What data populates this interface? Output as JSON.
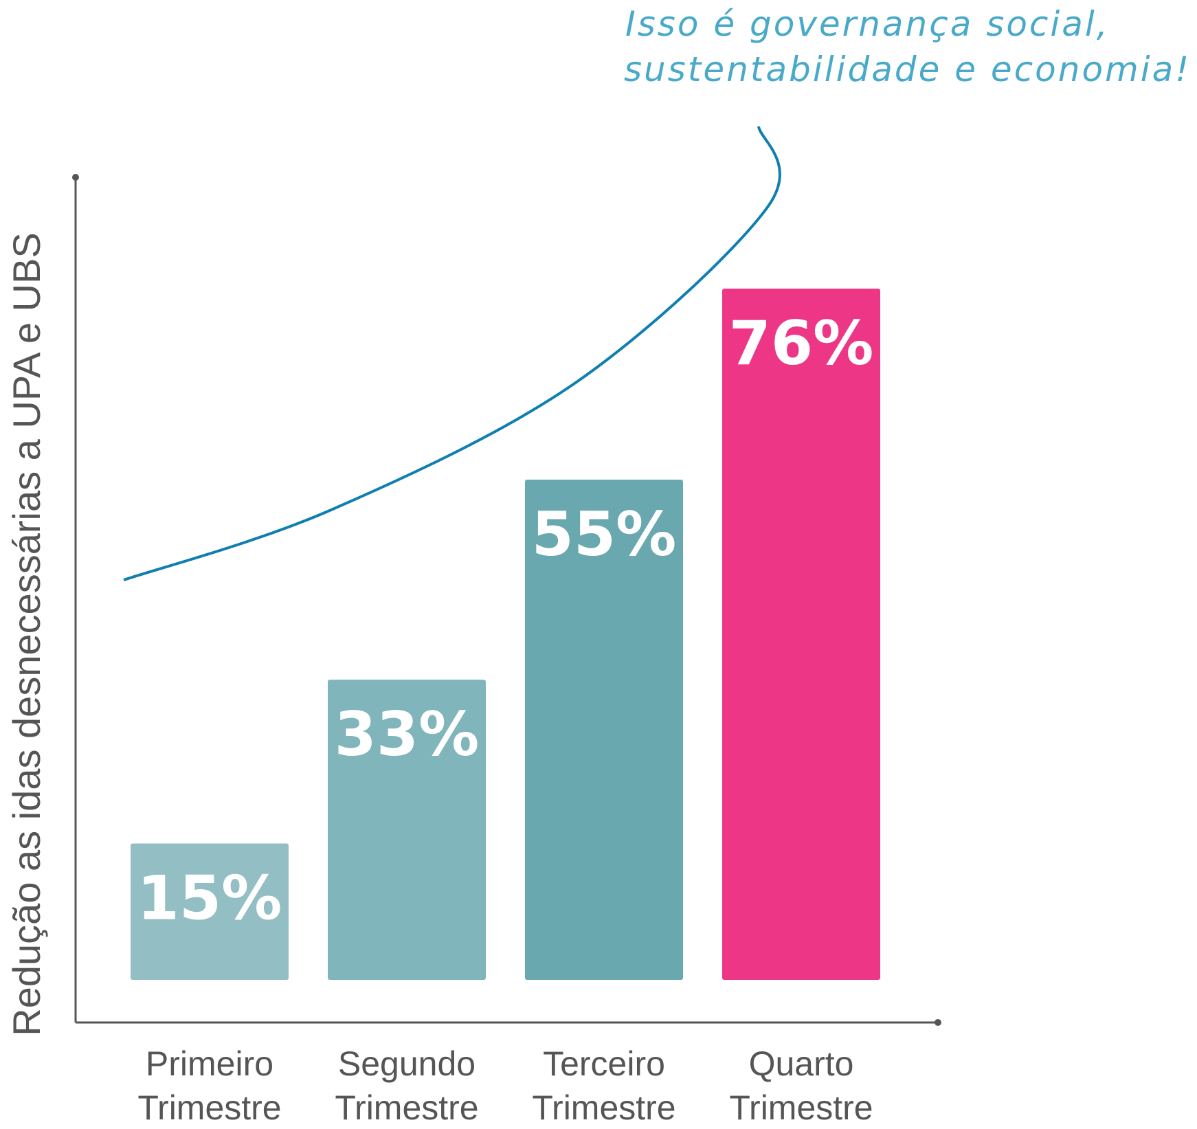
{
  "tagline": {
    "line1": "Isso é governança social,",
    "line2": "sustentabilidade e economia!"
  },
  "colors": {
    "trend_line": "#0f7fb0",
    "tagline": "#49a9c9",
    "axis": "#555555"
  },
  "chart_data": {
    "type": "bar",
    "ylabel": "Redução as idas desnecessárias a UPA e UBS",
    "xlabel": "",
    "ylim": [
      0,
      100
    ],
    "grid": false,
    "categories": [
      [
        "Primeiro",
        "Trimestre"
      ],
      [
        "Segundo",
        "Trimestre"
      ],
      [
        "Terceiro",
        "Trimestre"
      ],
      [
        "Quarto",
        "Trimestre"
      ]
    ],
    "values": [
      15,
      33,
      55,
      76
    ],
    "labels": [
      "15%",
      "33%",
      "55%",
      "76%"
    ],
    "bar_colors": [
      "#93bfc4",
      "#7fb5bb",
      "#6aa8b0",
      "#ee3686"
    ],
    "trend": "exponential curve rising above the bars"
  }
}
